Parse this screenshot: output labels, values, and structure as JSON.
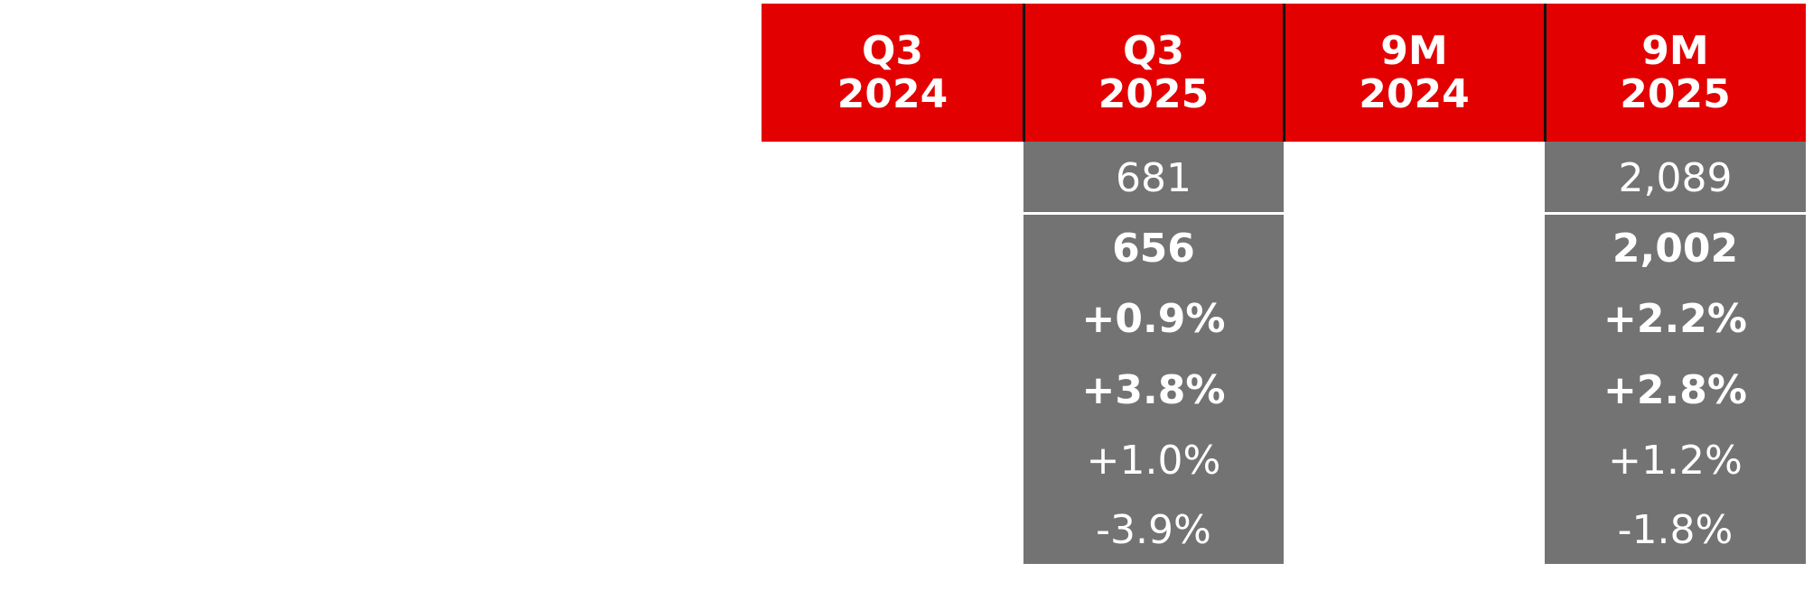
{
  "table": {
    "header": [
      [
        "Q3",
        "2024"
      ],
      [
        "Q3",
        "2025"
      ],
      [
        "9M",
        "2024"
      ],
      [
        "9M",
        "2025"
      ]
    ],
    "header_color": "#e30000",
    "cell_color": "#737373",
    "rows": [
      {
        "values": [
          null,
          "681",
          null,
          "2,089"
        ],
        "bold": false
      },
      {
        "values": [
          null,
          "656",
          null,
          "2,002"
        ],
        "bold": true
      },
      {
        "values": [
          null,
          "+0.9%",
          null,
          "+2.2%"
        ],
        "bold": true
      },
      {
        "values": [
          null,
          "+3.8%",
          null,
          "+2.8%"
        ],
        "bold": true
      },
      {
        "values": [
          null,
          "+1.0%",
          null,
          "+1.2%"
        ],
        "bold": false
      },
      {
        "values": [
          null,
          "-3.9%",
          null,
          "-1.8%"
        ],
        "bold": false
      }
    ]
  }
}
